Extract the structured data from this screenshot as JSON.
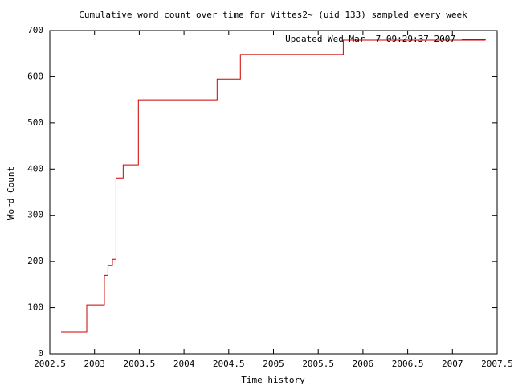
{
  "chart_data": {
    "type": "line",
    "step": true,
    "title": "Cumulative word count over time for Vittes2~ (uid 133) sampled every week",
    "x_label": "Time history",
    "y_label": "Word Count",
    "legend": "top-right",
    "series": [
      {
        "name": "Updated Wed Mar  7 09:29:37 2007",
        "color": "#cc0000",
        "x": [
          2002.626,
          2002.913,
          2002.913,
          2003.11,
          2003.11,
          2003.15,
          2003.15,
          2003.2,
          2003.2,
          2003.24,
          2003.24,
          2003.32,
          2003.32,
          2003.49,
          2003.49,
          2004.37,
          2004.37,
          2004.63,
          2004.63,
          2005.78,
          2005.78,
          2007.37
        ],
        "values": [
          47,
          47,
          106,
          106,
          170,
          170,
          191,
          191,
          205,
          205,
          381,
          381,
          409,
          409,
          550,
          550,
          595,
          595,
          648,
          648,
          679,
          679
        ]
      }
    ],
    "xlim": [
      2002.5,
      2007.5
    ],
    "xticks": [
      2002.5,
      2003,
      2003.5,
      2004,
      2004.5,
      2005,
      2005.5,
      2006,
      2006.5,
      2007,
      2007.5
    ],
    "ylim": [
      0,
      700
    ],
    "yticks": [
      0,
      100,
      200,
      300,
      400,
      500,
      600,
      700
    ],
    "grid": false
  }
}
